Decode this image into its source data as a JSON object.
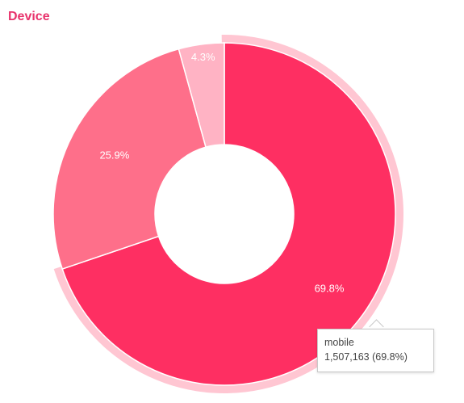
{
  "panel": {
    "title": "Device",
    "title_color": "#e8336c"
  },
  "chart_data": {
    "type": "pie",
    "variant": "donut",
    "title": "Device",
    "slices": [
      {
        "label": "",
        "percent": 69.8,
        "value_label": "69.8%",
        "color": "#fe2f62",
        "highlighted": true
      },
      {
        "label": "",
        "percent": 25.9,
        "value_label": "25.9%",
        "color": "#fe6f8a"
      },
      {
        "label": "",
        "percent": 4.3,
        "value_label": "4.3%",
        "color": "#ffb3c4"
      }
    ],
    "highlight_ring_color": "#ffc6d2"
  },
  "tooltip": {
    "name": "mobile",
    "detail": "1,507,163 (69.8%)"
  }
}
